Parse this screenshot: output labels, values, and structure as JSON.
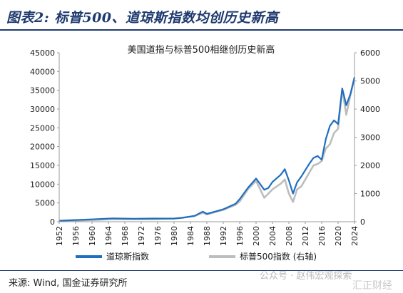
{
  "title": "图表2: 标普500、道琼斯指数均创历史新高",
  "source": "来源: Wind, 国金证券研究所",
  "watermark": "公众号 · 赵伟宏观探索",
  "watermark2": "汇正财经",
  "chart_data": {
    "type": "line",
    "title": "美国道指与标普500相继创历史新高",
    "x_ticks": [
      "1952",
      "1956",
      "1960",
      "1964",
      "1968",
      "1972",
      "1976",
      "1980",
      "1984",
      "1988",
      "1992",
      "1996",
      "2000",
      "2004",
      "2008",
      "2012",
      "2016",
      "2020",
      "2024"
    ],
    "y_left": {
      "ylim": [
        0,
        45000
      ],
      "ticks": [
        "0",
        "5000",
        "10000",
        "15000",
        "20000",
        "25000",
        "30000",
        "35000",
        "40000",
        "45000"
      ]
    },
    "y_right": {
      "ylim": [
        0,
        6000
      ],
      "ticks": [
        "0",
        "1000",
        "2000",
        "3000",
        "4000",
        "5000",
        "6000"
      ]
    },
    "grid": false,
    "legend_position": "bottom",
    "colors": {
      "dow": "#1f6fbf",
      "sp": "#bdbdbd",
      "title": "#1e3a6e"
    },
    "series": [
      {
        "name": "道琼斯指数",
        "axis": "left",
        "x": [
          1952,
          1955,
          1960,
          1965,
          1970,
          1975,
          1980,
          1982,
          1985,
          1987,
          1988,
          1990,
          1992,
          1995,
          1996,
          1998,
          2000,
          2001,
          2002,
          2003,
          2004,
          2006,
          2007,
          2008,
          2009,
          2010,
          2011,
          2013,
          2014,
          2015,
          2016,
          2017,
          2018,
          2019,
          2020,
          2021,
          2022,
          2023,
          2024
        ],
        "values": [
          270,
          400,
          620,
          900,
          800,
          850,
          840,
          1050,
          1550,
          2700,
          2100,
          2700,
          3300,
          4800,
          6000,
          9000,
          11500,
          10000,
          8500,
          9000,
          10600,
          12500,
          14000,
          11000,
          7500,
          10500,
          12000,
          15500,
          17000,
          17500,
          16500,
          22000,
          25500,
          27000,
          26000,
          35500,
          31000,
          34000,
          38500
        ]
      },
      {
        "name": "标普500指数 (右轴)",
        "axis": "right",
        "x": [
          1952,
          1955,
          1960,
          1965,
          1970,
          1975,
          1980,
          1982,
          1985,
          1987,
          1988,
          1990,
          1992,
          1995,
          1996,
          1998,
          2000,
          2001,
          2002,
          2003,
          2004,
          2006,
          2007,
          2008,
          2009,
          2010,
          2011,
          2013,
          2014,
          2015,
          2016,
          2017,
          2018,
          2019,
          2020,
          2021,
          2022,
          2023,
          2024
        ],
        "values": [
          25,
          40,
          57,
          90,
          85,
          85,
          115,
          140,
          200,
          320,
          260,
          340,
          420,
          600,
          720,
          1150,
          1450,
          1150,
          850,
          1000,
          1150,
          1350,
          1500,
          1000,
          700,
          1150,
          1250,
          1750,
          2000,
          2050,
          2150,
          2600,
          2750,
          3150,
          3300,
          4700,
          3800,
          4500,
          5100
        ]
      }
    ]
  }
}
